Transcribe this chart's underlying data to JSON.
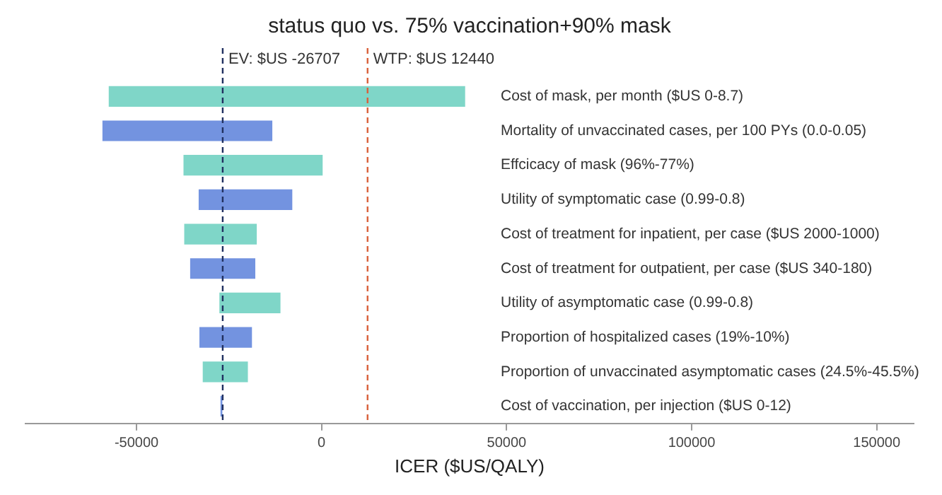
{
  "chart_data": {
    "type": "bar",
    "orientation": "horizontal",
    "title": "status quo vs. 75% vaccination+90% mask",
    "xlabel": "ICER ($US/QALY)",
    "categories": [
      "Cost of mask, per month ($US 0-8.7)",
      "Mortality of unvaccinated cases, per 100 PYs (0.0-0.05)",
      "Effcicacy of mask (96%-77%)",
      "Utility of symptomatic case (0.99-0.8)",
      "Cost of treatment for inpatient, per case ($US 2000-1000)",
      "Cost of treatment for outpatient, per case ($US 340-180)",
      "Utility of asymptomatic case (0.99-0.8)",
      "Proportion of hospitalized cases (19%-10%)",
      "Proportion of unvaccinated asymptomatic cases (24.5%-45.5%)",
      "Cost of vaccination, per injection ($US 0-12)"
    ],
    "base": [
      -57500,
      -59200,
      -37300,
      -33200,
      -37100,
      -35500,
      -27600,
      -33000,
      -32100,
      -27300
    ],
    "values": [
      96300,
      45900,
      37600,
      25300,
      19600,
      17600,
      16500,
      14200,
      12200,
      500
    ],
    "colors": [
      "#7fd6c8",
      "#7393e0",
      "#7fd6c8",
      "#7393e0",
      "#7fd6c8",
      "#7393e0",
      "#7fd6c8",
      "#7393e0",
      "#7fd6c8",
      "#7393e0"
    ],
    "xlim": [
      -80000,
      160000
    ],
    "xticks": [
      -50000,
      0,
      50000,
      100000,
      150000
    ],
    "ref_lines": [
      {
        "axis": "x",
        "value": -26707,
        "label": "EV: $US -26707",
        "color": "#1f2f5f",
        "line_style": "dashed"
      },
      {
        "axis": "x",
        "value": 12440,
        "label": "WTP: $US 12440",
        "color": "#d9603b",
        "line_style": "dashed"
      }
    ],
    "grid": false,
    "legend": false
  }
}
